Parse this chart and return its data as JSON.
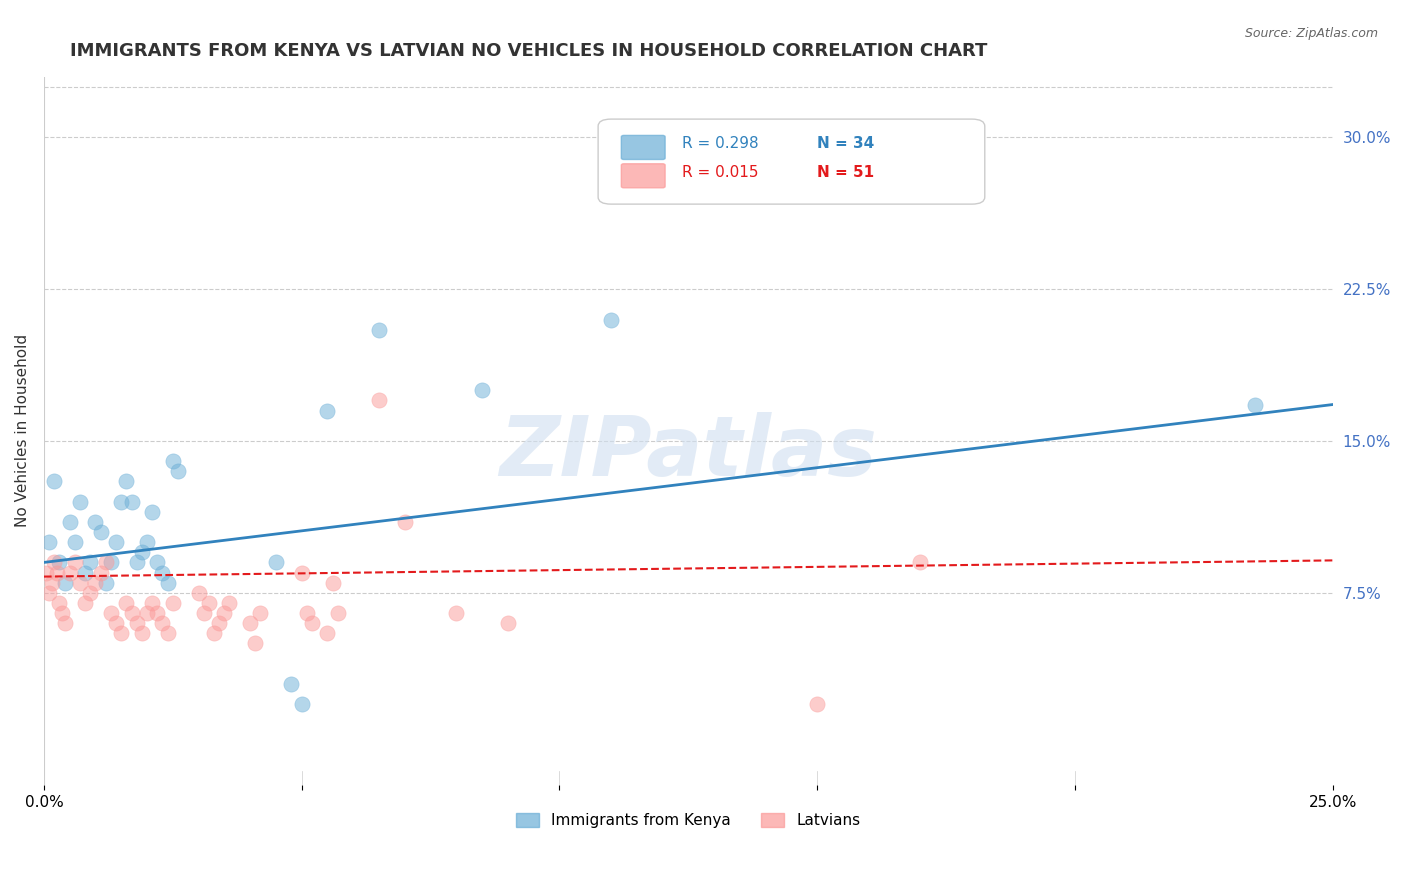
{
  "title": "IMMIGRANTS FROM KENYA VS LATVIAN NO VEHICLES IN HOUSEHOLD CORRELATION CHART",
  "source": "Source: ZipAtlas.com",
  "xlabel": "",
  "ylabel": "No Vehicles in Household",
  "xlim": [
    0.0,
    0.25
  ],
  "ylim": [
    -0.02,
    0.33
  ],
  "xticks": [
    0.0,
    0.05,
    0.1,
    0.15,
    0.2,
    0.25
  ],
  "xticklabels": [
    "0.0%",
    "",
    "",
    "",
    "",
    "25.0%"
  ],
  "yticks_right": [
    0.075,
    0.15,
    0.225,
    0.3
  ],
  "yticklabels_right": [
    "7.5%",
    "15.0%",
    "22.5%",
    "30.0%"
  ],
  "blue_color": "#6baed6",
  "pink_color": "#fb9a99",
  "blue_line_color": "#3182bd",
  "pink_line_color": "#e31a1c",
  "legend_R_blue": "R = 0.298",
  "legend_N_blue": "N = 34",
  "legend_R_pink": "R = 0.015",
  "legend_N_pink": "N = 51",
  "legend_label_blue": "Immigrants from Kenya",
  "legend_label_pink": "Latvians",
  "watermark": "ZIPatlas",
  "title_fontsize": 13,
  "axis_label_fontsize": 11,
  "tick_fontsize": 11,
  "blue_scatter": {
    "x": [
      0.001,
      0.002,
      0.003,
      0.004,
      0.005,
      0.006,
      0.007,
      0.008,
      0.009,
      0.01,
      0.011,
      0.012,
      0.013,
      0.014,
      0.015,
      0.016,
      0.017,
      0.018,
      0.019,
      0.02,
      0.021,
      0.022,
      0.023,
      0.024,
      0.025,
      0.026,
      0.045,
      0.048,
      0.05,
      0.055,
      0.065,
      0.085,
      0.11,
      0.235
    ],
    "y": [
      0.1,
      0.13,
      0.09,
      0.08,
      0.11,
      0.1,
      0.12,
      0.085,
      0.09,
      0.11,
      0.105,
      0.08,
      0.09,
      0.1,
      0.12,
      0.13,
      0.12,
      0.09,
      0.095,
      0.1,
      0.115,
      0.09,
      0.085,
      0.08,
      0.14,
      0.135,
      0.09,
      0.03,
      0.02,
      0.165,
      0.205,
      0.175,
      0.21,
      0.168
    ]
  },
  "pink_scatter": {
    "x": [
      0.0005,
      0.001,
      0.0015,
      0.002,
      0.0025,
      0.003,
      0.0035,
      0.004,
      0.005,
      0.006,
      0.007,
      0.008,
      0.009,
      0.01,
      0.011,
      0.012,
      0.013,
      0.014,
      0.015,
      0.016,
      0.017,
      0.018,
      0.019,
      0.02,
      0.021,
      0.022,
      0.023,
      0.024,
      0.025,
      0.03,
      0.031,
      0.032,
      0.033,
      0.034,
      0.035,
      0.036,
      0.04,
      0.041,
      0.042,
      0.05,
      0.051,
      0.052,
      0.055,
      0.056,
      0.057,
      0.065,
      0.07,
      0.08,
      0.09,
      0.15,
      0.17
    ],
    "y": [
      0.085,
      0.075,
      0.08,
      0.09,
      0.085,
      0.07,
      0.065,
      0.06,
      0.085,
      0.09,
      0.08,
      0.07,
      0.075,
      0.08,
      0.085,
      0.09,
      0.065,
      0.06,
      0.055,
      0.07,
      0.065,
      0.06,
      0.055,
      0.065,
      0.07,
      0.065,
      0.06,
      0.055,
      0.07,
      0.075,
      0.065,
      0.07,
      0.055,
      0.06,
      0.065,
      0.07,
      0.06,
      0.05,
      0.065,
      0.085,
      0.065,
      0.06,
      0.055,
      0.08,
      0.065,
      0.17,
      0.11,
      0.065,
      0.06,
      0.02,
      0.09
    ]
  },
  "blue_line": {
    "x": [
      0.0,
      0.25
    ],
    "y": [
      0.09,
      0.168
    ]
  },
  "pink_line": {
    "x": [
      0.0,
      0.25
    ],
    "y": [
      0.083,
      0.091
    ]
  },
  "grid_color": "#cccccc",
  "bg_color": "#ffffff",
  "right_tick_color": "#4472c4",
  "watermark_color": "#d0dff0",
  "marker_size": 120,
  "marker_alpha": 0.5
}
